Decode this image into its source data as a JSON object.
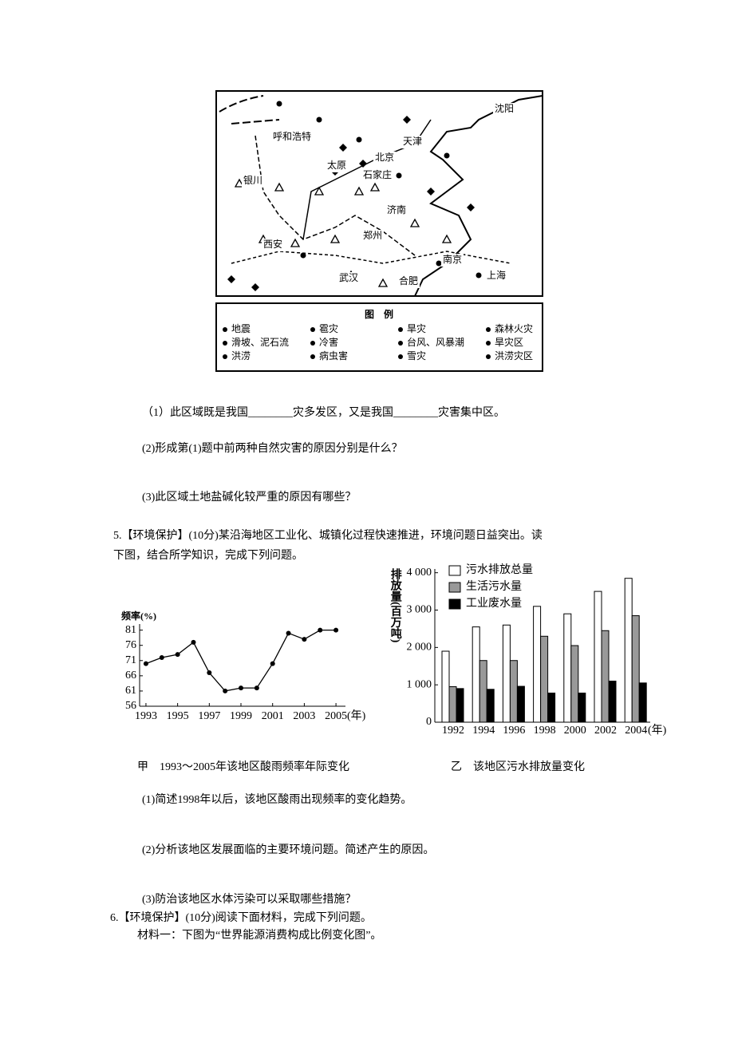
{
  "map": {
    "cities": [
      "沈阳",
      "呼和浩特",
      "天津",
      "北京",
      "太原",
      "石家庄",
      "银川",
      "济南",
      "西安",
      "郑州",
      "南京",
      "武汉",
      "合肥",
      "上海"
    ],
    "legend_title": "图　例",
    "legend_items": [
      "地震",
      "雹灾",
      "旱灾",
      "森林火灾",
      "滑坡、泥石流",
      "冷害",
      "台风、风暴潮",
      "旱灾区",
      "洪涝",
      "病虫害",
      "雪灾",
      "洪涝灾区"
    ]
  },
  "questions_4": [
    "（1）此区域既是我国________灾多发区，又是我国________灾害集中区。",
    "(2)形成第(1)题中前两种自然灾害的原因分别是什么？",
    "(3)此区域土地盐碱化较严重的原因有哪些？"
  ],
  "q5_intro": [
    "5.【环境保护】(10分)某沿海地区工业化、城镇化过程快速推进，环境问题日益突出。读",
    "下图，结合所学知识，完成下列问题。"
  ],
  "chart_a": {
    "type": "line",
    "y_label": "频率(%)",
    "x_unit": "(年)",
    "caption": "甲　1993～2005年该地区酸雨频率年际变化",
    "x": [
      1993,
      1994,
      1995,
      1996,
      1997,
      1998,
      1999,
      2000,
      2001,
      2002,
      2003,
      2004,
      2005
    ],
    "values": [
      70,
      72,
      73,
      77,
      67,
      61,
      62,
      62,
      70,
      80,
      78,
      81,
      81
    ],
    "xlim": [
      1992.6,
      2005.6
    ],
    "xticks": [
      1993,
      1995,
      1997,
      1999,
      2001,
      2003,
      2005
    ],
    "ylim": [
      56,
      83
    ],
    "yticks": [
      56,
      61,
      66,
      71,
      76,
      81
    ],
    "color": "#000000"
  },
  "chart_b": {
    "type": "bar",
    "y_label": "排放量(百万吨)",
    "x_unit": "(年)",
    "caption": "乙　该地区污水排放量变化",
    "categories": [
      "1992",
      "1994",
      "1996",
      "1998",
      "2000",
      "2002",
      "2004"
    ],
    "series": [
      {
        "name": "污水排放总量",
        "color": "#ffffff",
        "values": [
          1900,
          2550,
          2600,
          3100,
          2900,
          3500,
          3850
        ]
      },
      {
        "name": "生活污水量",
        "color": "#999999",
        "values": [
          950,
          1650,
          1650,
          2300,
          2050,
          2450,
          2850
        ]
      },
      {
        "name": "工业废水量",
        "color": "#000000",
        "values": [
          900,
          880,
          960,
          780,
          780,
          1100,
          1050
        ]
      }
    ],
    "ylim": [
      0,
      4100
    ],
    "yticks": [
      0,
      {
        "value": 1000,
        "label": "1 000"
      },
      {
        "value": 2000,
        "label": "2 000"
      },
      {
        "value": 3000,
        "label": "3 000"
      },
      {
        "value": 4000,
        "label": "4 000"
      }
    ]
  },
  "questions_5": [
    "(1)简述1998年以后，该地区酸雨出现频率的变化趋势。",
    "(2)分析该地区发展面临的主要环境问题。简述产生的原因。",
    "(3)防治该地区水体污染可以采取哪些措施？"
  ],
  "q6": [
    "6.【环境保护】(10分)阅读下面材料，完成下列问题。",
    "材料一：下图为“世界能源消费构成比例变化图”。"
  ]
}
